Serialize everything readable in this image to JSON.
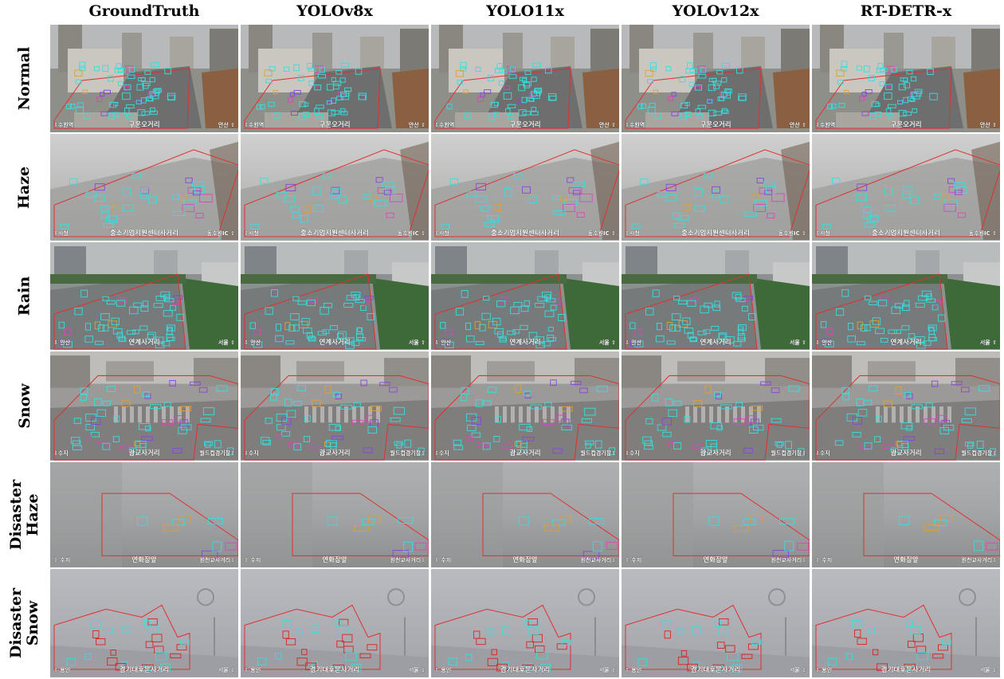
{
  "columns": [
    "GroundTruth",
    "YOLOv8x",
    "YOLO11x",
    "YOLOv12x",
    "RT-DETR-x"
  ],
  "rows": [
    {
      "label": "Normal",
      "left": "⇩수원역",
      "center": "구운오거리",
      "right": "안산 ⇧"
    },
    {
      "label": "Haze",
      "left": "⇩시청",
      "center": "중소기업지원센터사거리",
      "right": "동수원IC ⇧"
    },
    {
      "label": "Rain",
      "left": "⇩ 안산",
      "center": "연계사거리",
      "right": "서울 ⇧"
    },
    {
      "label": "Snow",
      "left": "⇩수지",
      "center": "광교사거리",
      "right": "월드컵경기장⇧"
    },
    {
      "label": "Disaster\nHaze",
      "left": "⇩ 수지",
      "center": "연화장앞",
      "right": "원천교사거리⇧"
    },
    {
      "label": "Disaster\nSnow",
      "left": "⇩ 용인",
      "center": "경기대후문사거리",
      "right": "서울 ⇧"
    }
  ],
  "colors": {
    "roi_outline": "#e03030",
    "car_box": "#33e0e0",
    "truck_box": "#8844dd",
    "bus_box": "#dd44bb",
    "motorcycle_box": "#88dd22",
    "special_box": "#e0a030",
    "disaster_box": "#dd2222"
  }
}
